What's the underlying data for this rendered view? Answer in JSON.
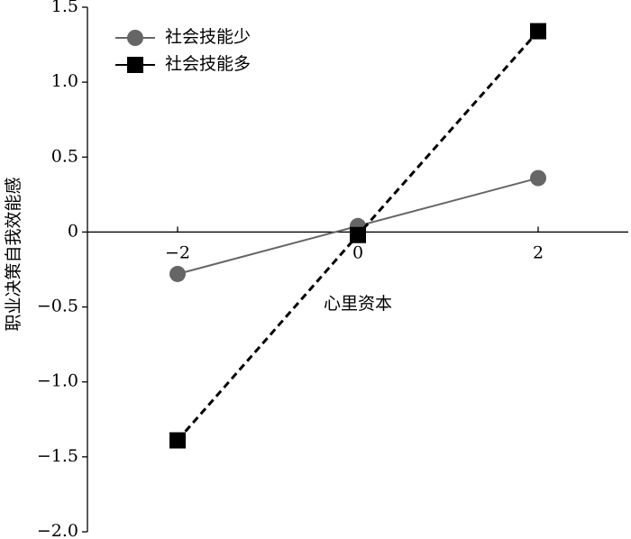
{
  "chart_data": {
    "type": "line",
    "x_label": "心里资本",
    "y_label": "职业决策自我效能感",
    "x": [
      -2,
      0,
      2
    ],
    "series": [
      {
        "name": "社会技能少",
        "color": "#666666",
        "marker": "circle",
        "dashed": false,
        "values": [
          -0.28,
          0.04,
          0.36
        ]
      },
      {
        "name": "社会技能多",
        "color": "#000000",
        "marker": "square",
        "dashed": true,
        "values": [
          -1.39,
          -0.02,
          1.34
        ]
      }
    ],
    "xlim": [
      -3,
      3
    ],
    "xticks": [
      {
        "value": -2,
        "label": "−2"
      },
      0,
      2
    ],
    "ylim": [
      -2,
      1.5
    ],
    "yticks": [
      {
        "value": -2,
        "label": "−2.0"
      },
      {
        "value": -1.5,
        "label": "−1.5"
      },
      {
        "value": -1,
        "label": "−1.0"
      },
      {
        "value": -0.5,
        "label": "−0.5"
      },
      0,
      0.5,
      {
        "value": 1,
        "label": "1.0"
      },
      1.5
    ],
    "legend": "top-left"
  }
}
